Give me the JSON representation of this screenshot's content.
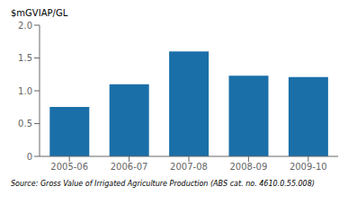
{
  "chart_data": {
    "type": "bar",
    "ylabel": "$mGVIAP/GL",
    "annotations": [
      "Source: Gross Value of Irrigated Agriculture Production (ABS cat.  no.  4610.0.55.008)"
    ],
    "categories": [
      "2005-06",
      "2006-07",
      "2007-08",
      "2008-09",
      "2009-10"
    ],
    "values": [
      0.755,
      1.1,
      1.6,
      1.23,
      1.21
    ],
    "color": "#1a6fa8",
    "ylim": [
      0,
      2.0
    ],
    "yticks": [
      0,
      0.5,
      {
        "value": 1.0,
        "label": "1.0"
      },
      1.5,
      {
        "value": 2.0,
        "label": "2.0"
      }
    ],
    "grid": false
  }
}
